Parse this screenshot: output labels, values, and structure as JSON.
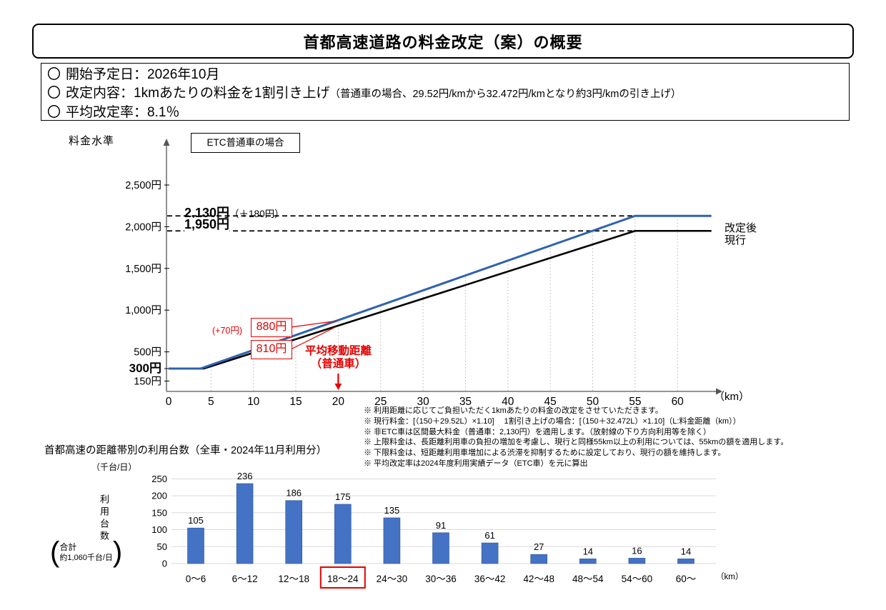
{
  "header": {
    "title": "首都高速道路の料金改定（案）の概要",
    "bullet_marker": "〇",
    "bullets": [
      {
        "main": "開始予定日：2026年10月",
        "small": ""
      },
      {
        "main": "改定内容：1kmあたりの料金を1割引き上げ",
        "small": "（普通車の場合、29.52円/kmから32.472円/kmとなり約3円/kmの引き上げ）"
      },
      {
        "main": "平均改定率：8.1％",
        "small": ""
      }
    ]
  },
  "notes": [
    "※ 利用距離に応じてご負担いただく1kmあたりの料金の改定をさせていただきます。",
    "※ 現行料金：[（150＋29.52L）×1.10]　 1割引き上げの場合：[（150＋32.472L）×1.10]（L:料金距離（km））",
    "※ 非ETC車は区間最大料金（普通車：2,130円）を適用します。（放射線の下り方向利用等を除く）",
    "※ 上限料金は、長距離利用車の負担の増加を考慮し、現行と同様55km以上の利用については、55kmの額を適用します。",
    "※ 下限料金は、短距離利用車増加による渋滞を抑制するために設定しており、現行の額を維持します。",
    "※ 平均改定率は2024年度利用実績データ（ETC車）を元に算出"
  ],
  "chart_data": [
    {
      "type": "line",
      "title": "ETC普通車の場合",
      "ylabel": "料金水準",
      "x_unit": "（km）",
      "xlim": [
        0,
        64
      ],
      "x_ticks": [
        0,
        5,
        10,
        15,
        20,
        25,
        30,
        35,
        40,
        45,
        50,
        55,
        60
      ],
      "y_ticks": [
        {
          "yen": 2500,
          "label": "2,500円"
        },
        {
          "yen": 2000,
          "label": "2,000円"
        },
        {
          "yen": 1500,
          "label": "1,500円"
        },
        {
          "yen": 1000,
          "label": "1,000円"
        },
        {
          "yen": 500,
          "label": "500円"
        },
        {
          "yen": 300,
          "label": "300円",
          "bold": true
        },
        {
          "yen": 150,
          "label": "150円"
        }
      ],
      "series": [
        {
          "key": "current",
          "name": "現行",
          "color": "#000000",
          "formula": "（150＋29.52L）×1.10",
          "points": [
            [
              0,
              300
            ],
            [
              4.16,
              300
            ],
            [
              55,
              1950
            ],
            [
              64,
              1950
            ]
          ]
        },
        {
          "key": "revised",
          "name": "改定後",
          "color": "#2E63AE",
          "formula": "（150＋32.472L）×1.10",
          "points": [
            [
              0,
              300
            ],
            [
              3.78,
              300
            ],
            [
              55,
              2130
            ],
            [
              64,
              2130
            ]
          ]
        }
      ],
      "dashed_levels": [
        {
          "yen": 2130,
          "label": "2,130円",
          "note": "（＋180円）"
        },
        {
          "yen": 1950,
          "label": "1,950円",
          "note": ""
        }
      ],
      "annotations": {
        "plus70": "(+70円)",
        "revised_20km": "880円",
        "current_20km": "810円",
        "avg_km": 20,
        "avg_line1": "平均移動距離",
        "avg_line2": "（普通車）"
      }
    },
    {
      "type": "bar",
      "title": "首都高速の距離帯別の利用台数（全車・2024年11月利用分）",
      "unit": "（千台/日）",
      "ylabel": "利用台数",
      "total_label": "合計",
      "total_value": "約1,060千台/日",
      "x_unit": "（km）",
      "categories": [
        "0～6",
        "6～12",
        "12～18",
        "18～24",
        "24～30",
        "30～36",
        "36～42",
        "42～48",
        "48～54",
        "54～60",
        "60～"
      ],
      "values": [
        105,
        236,
        186,
        175,
        135,
        91,
        61,
        27,
        14,
        16,
        14
      ],
      "highlight_index": 3,
      "y_ticks": [
        0,
        50,
        100,
        150,
        200,
        250
      ],
      "ylim": [
        0,
        250
      ],
      "bar_color": "#4472C4",
      "bar_border_color": "#2F5597",
      "highlight_color": "#E60000"
    }
  ]
}
